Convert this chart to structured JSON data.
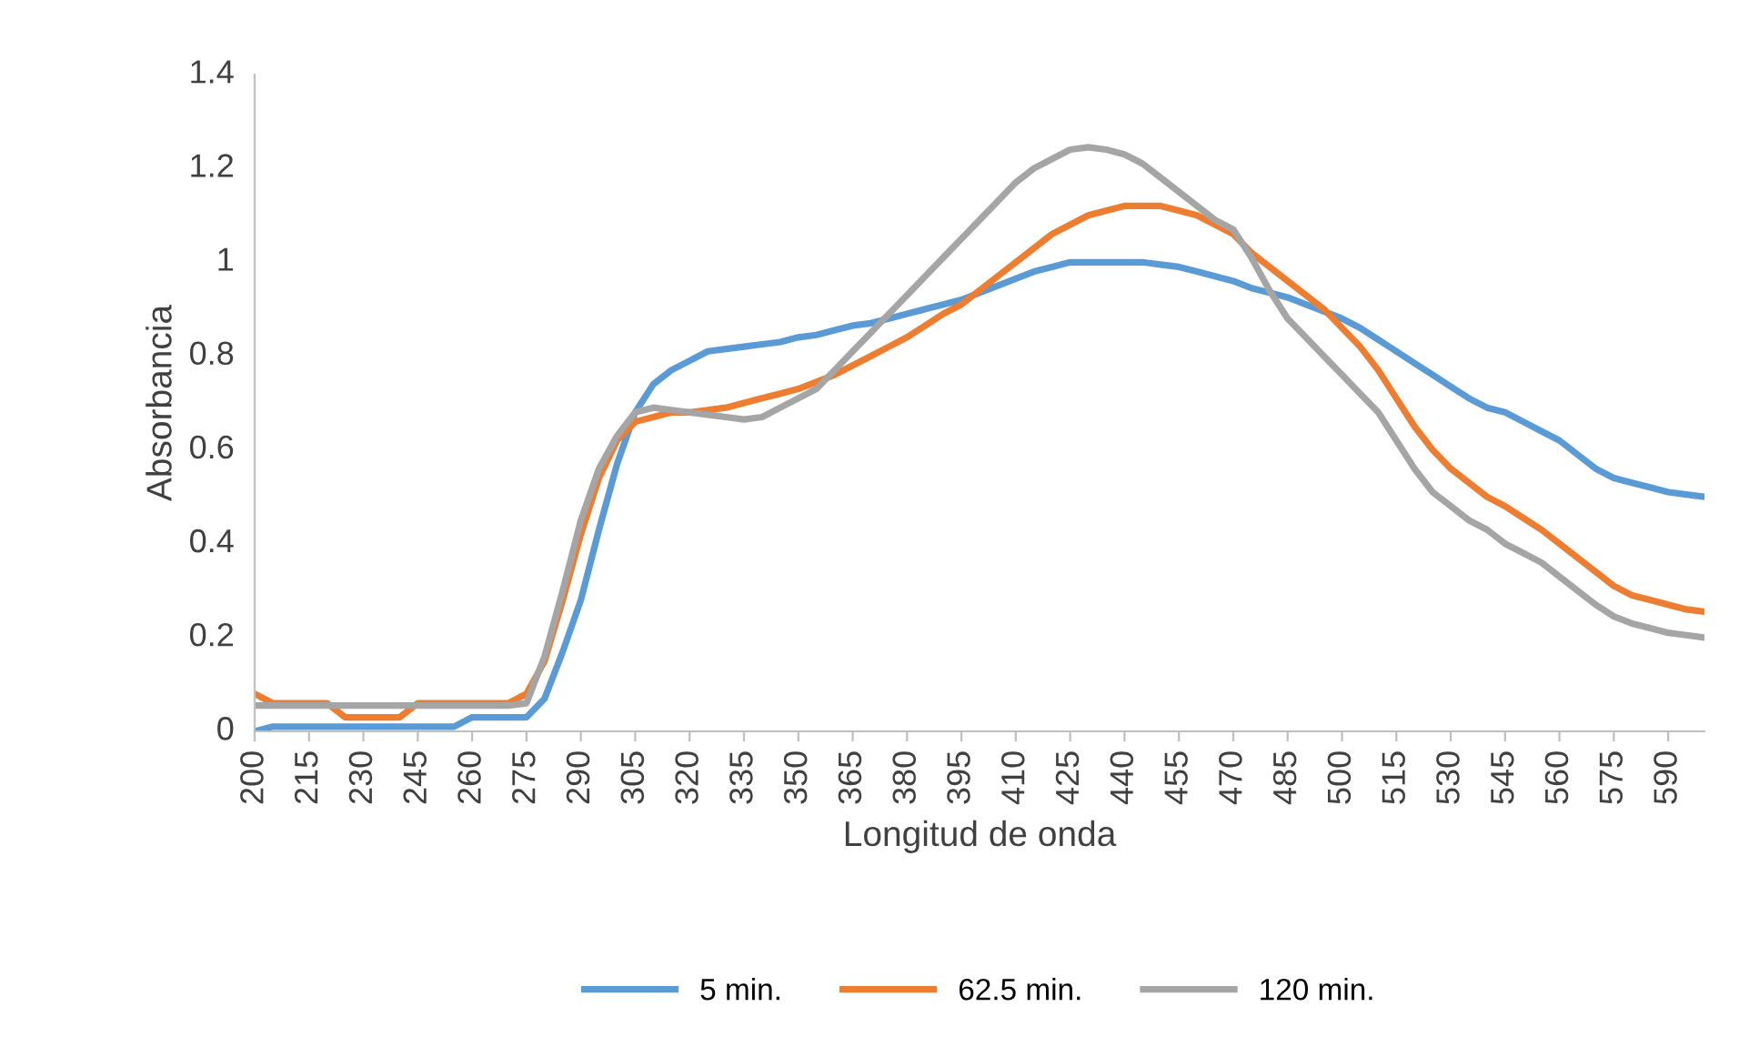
{
  "chart_data": {
    "type": "line",
    "xlabel": "Longitud de onda",
    "ylabel": "Absorbancia",
    "categories": [
      "200",
      null,
      null,
      "215",
      null,
      null,
      "230",
      null,
      null,
      "245",
      null,
      null,
      "260",
      null,
      null,
      "275",
      null,
      null,
      "290",
      null,
      null,
      "305",
      null,
      null,
      "320",
      null,
      null,
      "335",
      null,
      null,
      "350",
      null,
      null,
      "365",
      null,
      null,
      "380",
      null,
      null,
      "395",
      null,
      null,
      "410",
      null,
      null,
      "425",
      null,
      null,
      "440",
      null,
      null,
      "455",
      null,
      null,
      "470",
      null,
      null,
      "485",
      null,
      null,
      "500",
      null,
      null,
      "515",
      null,
      null,
      "530",
      null,
      null,
      "545",
      null,
      null,
      "560",
      null,
      null,
      "575",
      null,
      null,
      "590",
      null,
      null
    ],
    "ylim": [
      0,
      1.4
    ],
    "yticks": [
      0,
      0.2,
      0.4,
      0.6,
      0.8,
      1,
      1.2,
      1.4
    ],
    "grid": false,
    "legend": "bottom",
    "marker": "none",
    "line_style": "solid",
    "series": [
      {
        "name": "5 min.",
        "color": "#5b9bd5",
        "values": [
          0.0,
          0.01,
          0.01,
          0.01,
          0.01,
          0.01,
          0.01,
          0.01,
          0.01,
          0.01,
          0.01,
          0.01,
          0.03,
          0.03,
          0.03,
          0.03,
          0.07,
          0.17,
          0.28,
          0.43,
          0.57,
          0.68,
          0.74,
          0.77,
          0.79,
          0.81,
          0.815,
          0.82,
          0.825,
          0.83,
          0.84,
          0.845,
          0.855,
          0.865,
          0.87,
          0.88,
          0.89,
          0.9,
          0.91,
          0.92,
          0.935,
          0.95,
          0.965,
          0.98,
          0.99,
          1.0,
          1.0,
          1.0,
          1.0,
          1.0,
          0.995,
          0.99,
          0.98,
          0.97,
          0.96,
          0.945,
          0.935,
          0.925,
          0.91,
          0.895,
          0.88,
          0.86,
          0.835,
          0.81,
          0.785,
          0.76,
          0.735,
          0.71,
          0.69,
          0.68,
          0.66,
          0.64,
          0.62,
          0.59,
          0.56,
          0.54,
          0.53,
          0.52,
          0.51,
          0.505,
          0.5
        ]
      },
      {
        "name": "62.5 min.",
        "color": "#ed7d31",
        "values": [
          0.08,
          0.06,
          0.06,
          0.06,
          0.06,
          0.03,
          0.03,
          0.03,
          0.03,
          0.06,
          0.06,
          0.06,
          0.06,
          0.06,
          0.06,
          0.08,
          0.15,
          0.28,
          0.42,
          0.54,
          0.62,
          0.66,
          0.67,
          0.68,
          0.68,
          0.685,
          0.69,
          0.7,
          0.71,
          0.72,
          0.73,
          0.745,
          0.76,
          0.78,
          0.8,
          0.82,
          0.84,
          0.865,
          0.89,
          0.91,
          0.94,
          0.97,
          1.0,
          1.03,
          1.06,
          1.08,
          1.1,
          1.11,
          1.12,
          1.12,
          1.12,
          1.11,
          1.1,
          1.08,
          1.06,
          1.02,
          0.99,
          0.96,
          0.93,
          0.9,
          0.86,
          0.82,
          0.77,
          0.71,
          0.65,
          0.6,
          0.56,
          0.53,
          0.5,
          0.48,
          0.455,
          0.43,
          0.4,
          0.37,
          0.34,
          0.31,
          0.29,
          0.28,
          0.27,
          0.26,
          0.255
        ]
      },
      {
        "name": "120 min.",
        "color": "#a5a5a5",
        "values": [
          0.055,
          0.055,
          0.055,
          0.055,
          0.055,
          0.055,
          0.055,
          0.055,
          0.055,
          0.055,
          0.055,
          0.055,
          0.055,
          0.055,
          0.055,
          0.06,
          0.16,
          0.3,
          0.45,
          0.56,
          0.63,
          0.68,
          0.69,
          0.685,
          0.68,
          0.675,
          0.67,
          0.665,
          0.67,
          0.69,
          0.71,
          0.73,
          0.77,
          0.81,
          0.85,
          0.89,
          0.93,
          0.97,
          1.01,
          1.05,
          1.09,
          1.13,
          1.17,
          1.2,
          1.22,
          1.24,
          1.245,
          1.24,
          1.23,
          1.21,
          1.18,
          1.15,
          1.12,
          1.09,
          1.07,
          1.01,
          0.94,
          0.88,
          0.84,
          0.8,
          0.76,
          0.72,
          0.68,
          0.62,
          0.56,
          0.51,
          0.48,
          0.45,
          0.43,
          0.4,
          0.38,
          0.36,
          0.33,
          0.3,
          0.27,
          0.245,
          0.23,
          0.22,
          0.21,
          0.205,
          0.2
        ]
      }
    ]
  }
}
